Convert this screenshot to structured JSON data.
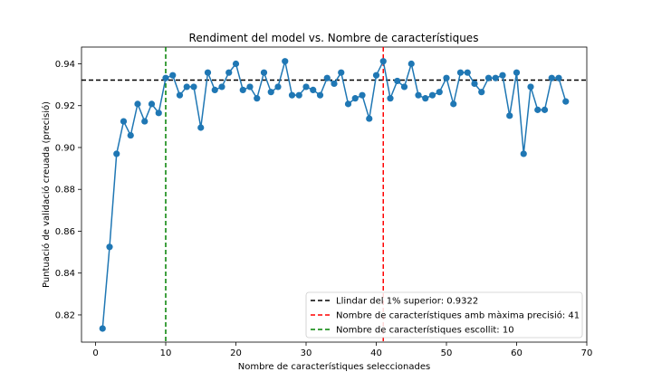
{
  "chart_data": {
    "type": "line",
    "title": "Rendiment del model vs. Nombre de característiques",
    "xlabel": "Nombre de característiques seleccionades",
    "ylabel": "Puntuació de validació creuada (precisió)",
    "xlim": [
      -2,
      70
    ],
    "ylim": [
      0.807,
      0.948
    ],
    "xticks": [
      0,
      10,
      20,
      30,
      40,
      50,
      60,
      70
    ],
    "yticks": [
      0.82,
      0.84,
      0.86,
      0.88,
      0.9,
      0.92,
      0.94
    ],
    "ytick_labels": [
      "0.82",
      "0.84",
      "0.86",
      "0.88",
      "0.90",
      "0.92",
      "0.94"
    ],
    "grid": false,
    "legend_position": "lower-right",
    "series": [
      {
        "color": "#1f77b4",
        "x": [
          1,
          2,
          3,
          4,
          5,
          6,
          7,
          8,
          9,
          10,
          11,
          12,
          13,
          14,
          15,
          16,
          17,
          18,
          19,
          20,
          21,
          22,
          23,
          24,
          25,
          26,
          27,
          28,
          29,
          30,
          31,
          32,
          33,
          34,
          35,
          36,
          37,
          38,
          39,
          40,
          41,
          42,
          43,
          44,
          45,
          46,
          47,
          48,
          49,
          50,
          51,
          52,
          53,
          54,
          55,
          56,
          57,
          58,
          59,
          60,
          61,
          62,
          63,
          64,
          65,
          66,
          67
        ],
        "y": [
          0.8135,
          0.8525,
          0.897,
          0.9125,
          0.9058,
          0.9208,
          0.9125,
          0.9208,
          0.9165,
          0.9332,
          0.9345,
          0.925,
          0.929,
          0.929,
          0.9095,
          0.9358,
          0.9275,
          0.929,
          0.9358,
          0.94,
          0.9275,
          0.929,
          0.9235,
          0.9358,
          0.9265,
          0.929,
          0.9412,
          0.925,
          0.925,
          0.929,
          0.9275,
          0.925,
          0.9332,
          0.9305,
          0.9358,
          0.9208,
          0.9235,
          0.925,
          0.9138,
          0.9345,
          0.9412,
          0.9235,
          0.9318,
          0.929,
          0.94,
          0.925,
          0.9235,
          0.925,
          0.9265,
          0.9332,
          0.9208,
          0.9358,
          0.9358,
          0.9305,
          0.9265,
          0.9332,
          0.9332,
          0.9345,
          0.9152,
          0.9358,
          0.897,
          0.929,
          0.918,
          0.918,
          0.9332,
          0.9332,
          0.922
        ]
      }
    ],
    "reference_lines": [
      {
        "orientation": "horizontal",
        "value": 0.9322,
        "color": "#000000",
        "style": "dashed",
        "label": "Llindar del 1% superior: 0.9322"
      },
      {
        "orientation": "vertical",
        "value": 41,
        "color": "#ff0000",
        "style": "dashed",
        "label": "Nombre de característiques amb màxima precisió: 41"
      },
      {
        "orientation": "vertical",
        "value": 10,
        "color": "#008000",
        "style": "dashed",
        "label": "Nombre de característiques escollit: 10"
      }
    ]
  }
}
